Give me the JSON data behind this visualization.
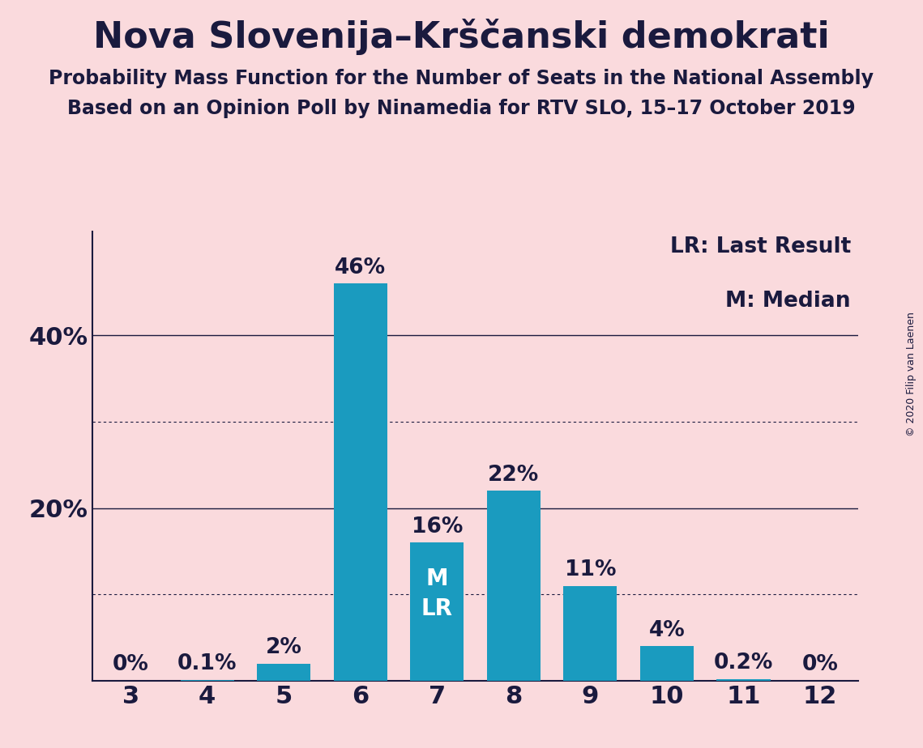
{
  "title": "Nova Slovenija–Krščanski demokrati",
  "subtitle1": "Probability Mass Function for the Number of Seats in the National Assembly",
  "subtitle2": "Based on an Opinion Poll by Ninamedia for RTV SLO, 15–17 October 2019",
  "copyright": "© 2020 Filip van Laenen",
  "seats": [
    3,
    4,
    5,
    6,
    7,
    8,
    9,
    10,
    11,
    12
  ],
  "probabilities": [
    0.0,
    0.1,
    2.0,
    46.0,
    16.0,
    22.0,
    11.0,
    4.0,
    0.2,
    0.0
  ],
  "bar_color": "#1a9bbf",
  "background_color": "#fadadd",
  "text_color": "#1a1a3e",
  "label_texts": [
    "0%",
    "0.1%",
    "2%",
    "46%",
    "16%",
    "22%",
    "11%",
    "4%",
    "0.2%",
    "0%"
  ],
  "median_seat": 7,
  "last_result_seat": 7,
  "ylim": [
    0,
    52
  ],
  "ytick_values": [
    20,
    40
  ],
  "ytick_labels": [
    "20%",
    "40%"
  ],
  "dotted_gridlines": [
    10,
    30
  ],
  "solid_gridlines": [
    20,
    40
  ],
  "legend_lr": "LR: Last Result",
  "legend_m": "M: Median",
  "bar_width": 0.7,
  "title_fontsize": 32,
  "subtitle_fontsize": 17,
  "label_fontsize": 19,
  "axis_fontsize": 22,
  "legend_fontsize": 19,
  "annotation_fontsize": 20,
  "copyright_fontsize": 9
}
